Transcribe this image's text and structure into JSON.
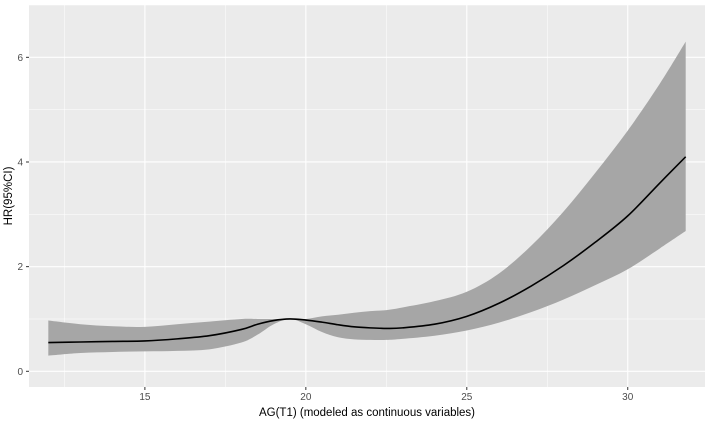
{
  "chart_data": {
    "type": "line",
    "title": "",
    "xlabel": "AG(T1) (modeled as continuous variables)",
    "ylabel": "HR(95%CI)",
    "xlim": [
      11.4,
      32.4
    ],
    "ylim": [
      -0.3,
      7.0
    ],
    "x_ticks": [
      15,
      20,
      25,
      30
    ],
    "y_ticks": [
      0,
      2,
      4,
      6
    ],
    "grid": true,
    "legend": "none",
    "series": [
      {
        "x": [
          12.0,
          13.0,
          14.0,
          15.0,
          16.0,
          17.0,
          18.0,
          18.5,
          19.0,
          19.5,
          20.0,
          20.5,
          21.0,
          21.5,
          22.0,
          22.5,
          23.0,
          24.0,
          25.0,
          26.0,
          27.0,
          28.0,
          29.0,
          30.0,
          31.0,
          31.8
        ],
        "y": [
          0.55,
          0.56,
          0.57,
          0.58,
          0.62,
          0.68,
          0.8,
          0.9,
          0.97,
          1.0,
          0.98,
          0.94,
          0.89,
          0.85,
          0.83,
          0.82,
          0.83,
          0.9,
          1.05,
          1.3,
          1.63,
          2.02,
          2.47,
          2.97,
          3.6,
          4.1
        ],
        "lower": [
          0.3,
          0.35,
          0.37,
          0.38,
          0.39,
          0.42,
          0.55,
          0.7,
          0.9,
          1.0,
          0.9,
          0.75,
          0.65,
          0.61,
          0.6,
          0.6,
          0.62,
          0.68,
          0.78,
          0.93,
          1.13,
          1.37,
          1.65,
          1.95,
          2.35,
          2.68
        ],
        "upper": [
          0.97,
          0.9,
          0.86,
          0.85,
          0.9,
          0.95,
          1.0,
          1.0,
          1.0,
          1.0,
          1.0,
          1.05,
          1.08,
          1.12,
          1.15,
          1.17,
          1.22,
          1.34,
          1.52,
          1.87,
          2.4,
          3.05,
          3.8,
          4.6,
          5.5,
          6.3
        ]
      }
    ],
    "colors": {
      "panel": "#ebebeb",
      "grid_major": "#ffffff",
      "ribbon": "#a6a6a6",
      "line": "#000000"
    }
  }
}
